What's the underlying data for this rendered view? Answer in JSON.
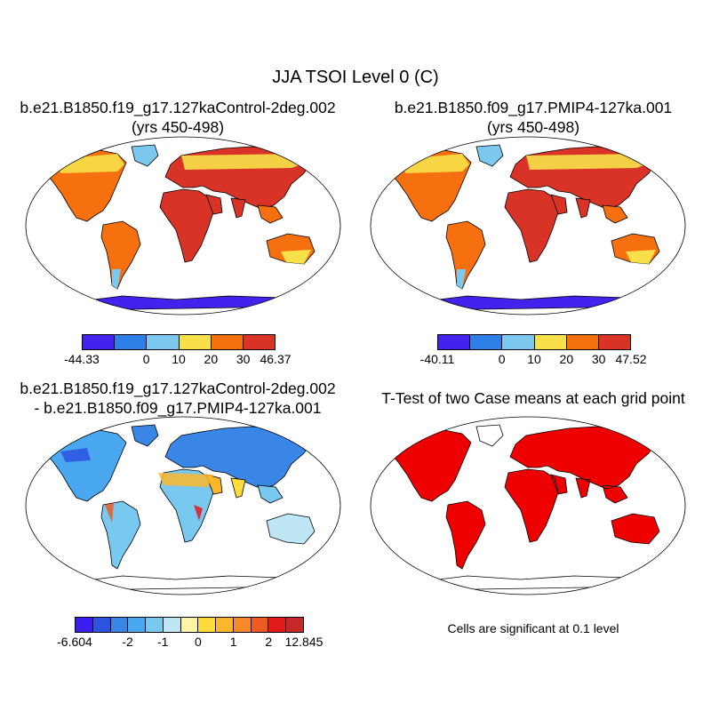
{
  "title": "JJA TSOI Level 0 (C)",
  "panels": [
    {
      "title_line1": "b.e21.B1850.f19_g17.127kaControl-2deg.002",
      "title_line2": "(yrs 450-498)",
      "colorbar": {
        "colors": [
          "#4422ee",
          "#2f7fe8",
          "#7cc8ee",
          "#f7e049",
          "#f6700f",
          "#d93327"
        ],
        "labels": [
          "-44.33",
          "0",
          "10",
          "20",
          "30",
          "46.37"
        ]
      }
    },
    {
      "title_line1": "b.e21.B1850.f09_g17.PMIP4-127ka.001",
      "title_line2": "(yrs 450-498)",
      "colorbar": {
        "colors": [
          "#4422ee",
          "#2f7fe8",
          "#7cc8ee",
          "#f7e049",
          "#f6700f",
          "#d93327"
        ],
        "labels": [
          "-40.11",
          "0",
          "10",
          "20",
          "30",
          "47.52"
        ]
      }
    },
    {
      "title_line1": "b.e21.B1850.f19_g17.127kaControl-2deg.002",
      "title_line2": "- b.e21.B1850.f09_g17.PMIP4-127ka.001",
      "colorbar": {
        "colors": [
          "#3a1ef0",
          "#2c52e0",
          "#3a86e6",
          "#4aa8f0",
          "#78c8f0",
          "#bfe6f4",
          "#fff3a6",
          "#fcdc3c",
          "#fbb72c",
          "#f6892a",
          "#ee5a22",
          "#e31a1c",
          "#c62828"
        ],
        "labels": [
          "-6.604",
          "-2",
          "-1",
          "0",
          "1",
          "2",
          "12.845"
        ]
      }
    },
    {
      "title_line1": "T-Test of two Case means at each grid point",
      "note": "Cells are significant at 0.1 level",
      "sig_color": "#ee0000"
    }
  ]
}
